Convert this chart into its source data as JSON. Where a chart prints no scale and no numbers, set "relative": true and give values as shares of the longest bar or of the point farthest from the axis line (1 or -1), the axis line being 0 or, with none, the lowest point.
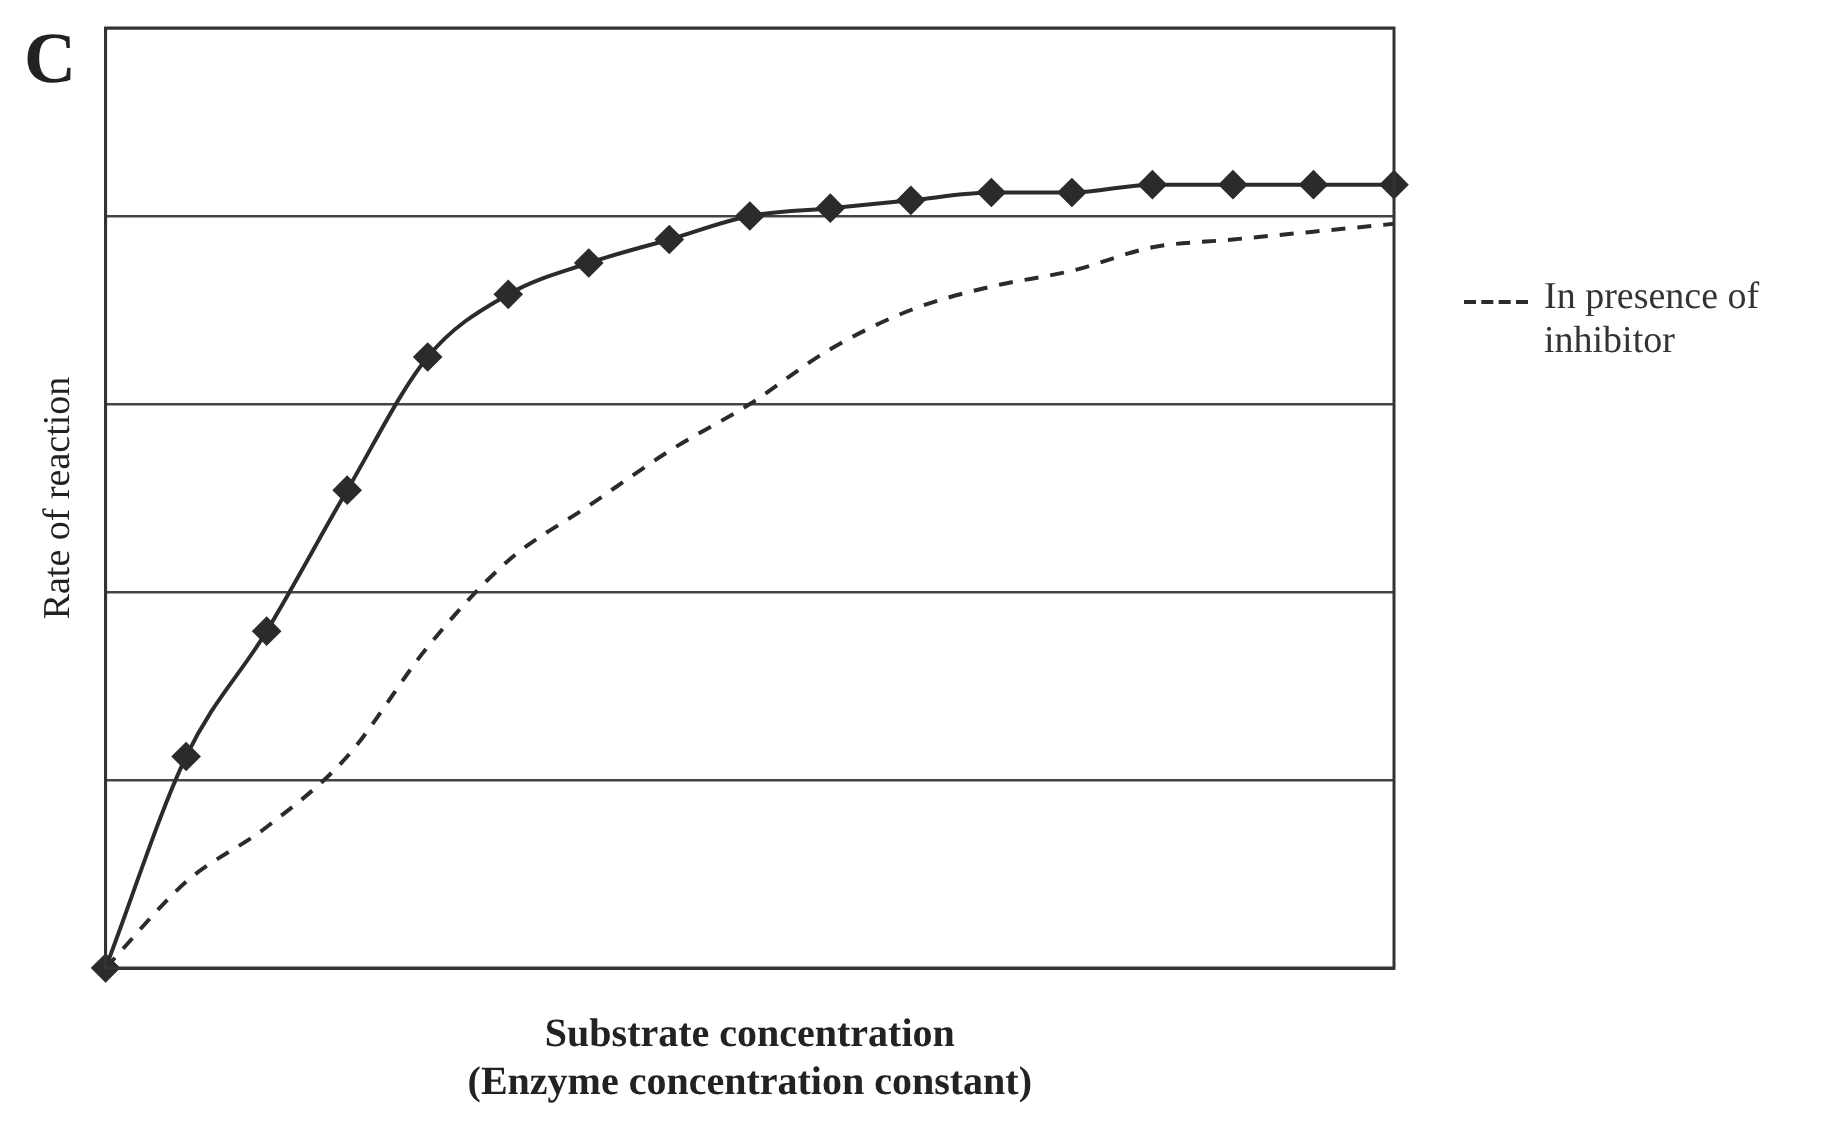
{
  "chart_data": {
    "type": "line",
    "relative": true,
    "xlabel": "Substrate concentration\n(Enzyme concentration constant)",
    "ylabel": "Rate of reaction",
    "annotations": [
      "C"
    ],
    "grid": "y",
    "legend": "right",
    "tick_labels": false,
    "categories": [
      null,
      null,
      null,
      null,
      null,
      null,
      null,
      null,
      null,
      null,
      null,
      null,
      null,
      null,
      null,
      null,
      null
    ],
    "series": [
      {
        "color": "#2b2b2b",
        "marker": "diamond",
        "line_style": "solid",
        "values": [
          0,
          0.27,
          0.43,
          0.61,
          0.78,
          0.86,
          0.9,
          0.93,
          0.96,
          0.97,
          0.98,
          0.99,
          0.99,
          1,
          1,
          1,
          1
        ]
      },
      {
        "name": "In presence of inhibitor",
        "color": "#2b2b2b",
        "marker": "none",
        "line_style": "dashed",
        "values": [
          0,
          0.11,
          0.18,
          0.27,
          0.41,
          0.52,
          0.59,
          0.66,
          0.72,
          0.79,
          0.84,
          0.87,
          0.89,
          0.92,
          0.93,
          0.94,
          0.95
        ]
      }
    ]
  }
}
